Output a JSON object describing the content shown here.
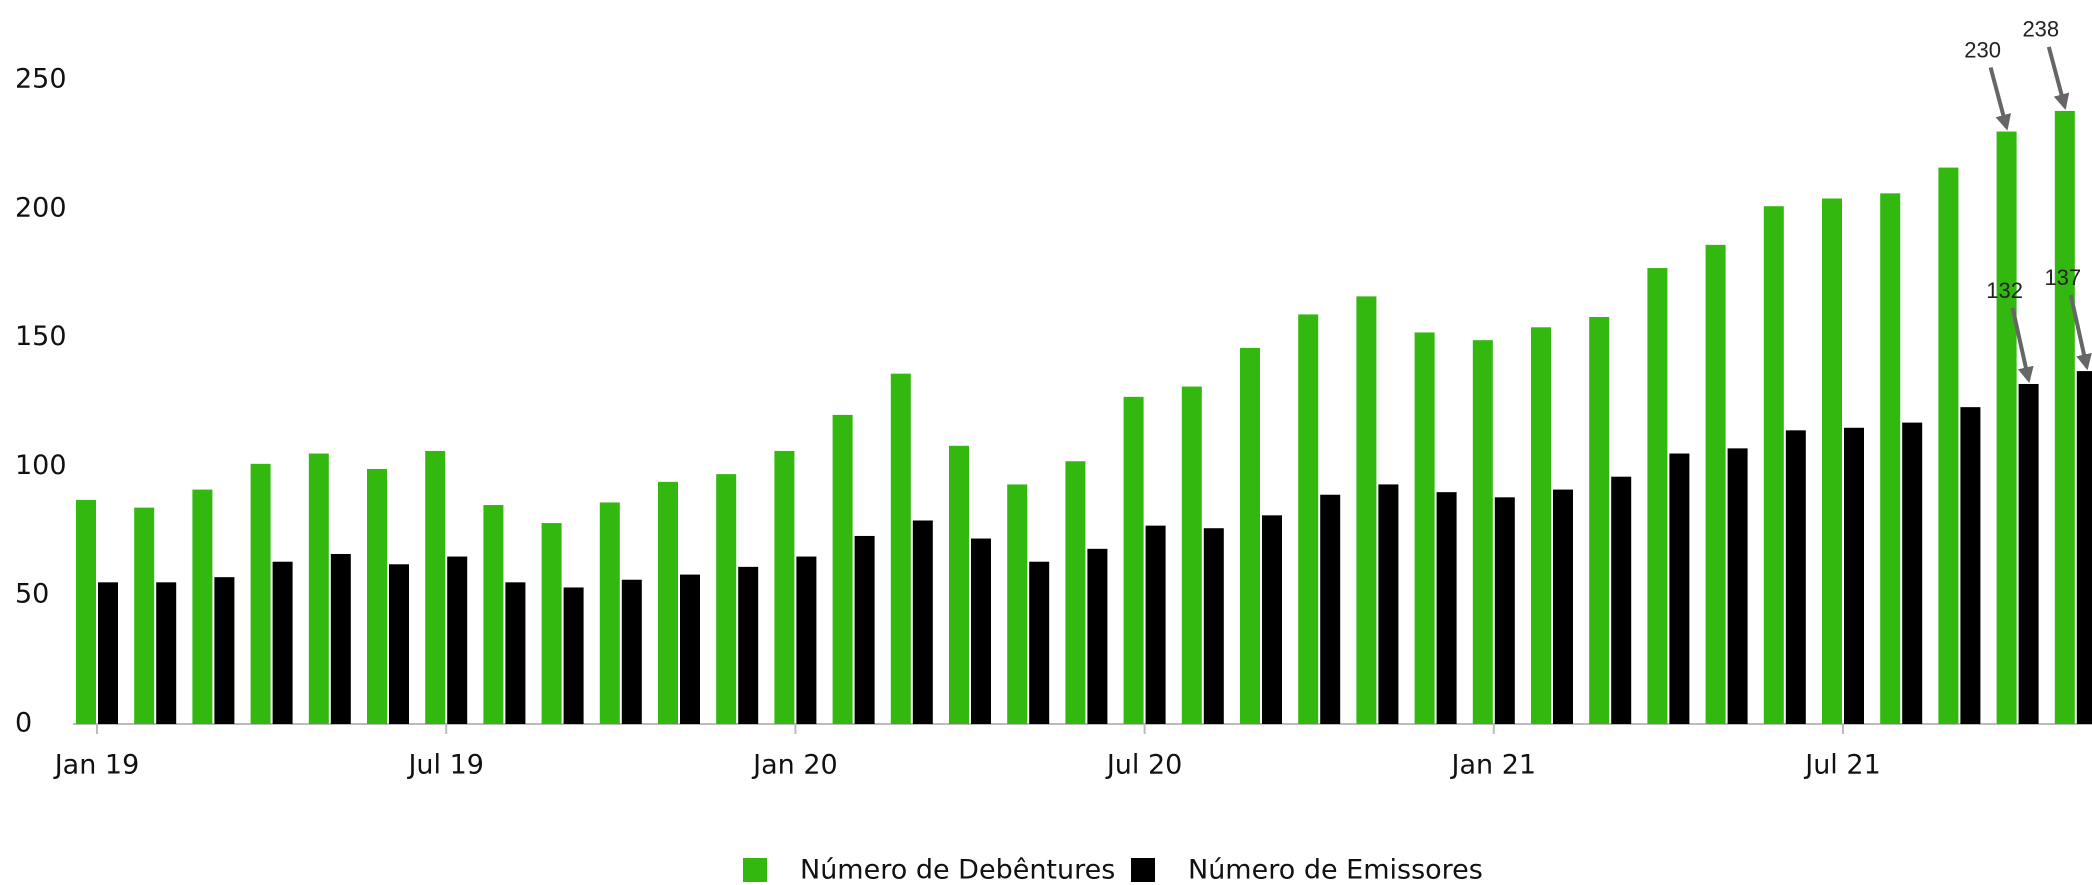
{
  "chart_data": {
    "type": "bar",
    "categories": [
      "Jan 19",
      null,
      null,
      null,
      null,
      null,
      "Jul 19",
      null,
      null,
      null,
      null,
      null,
      "Jan 20",
      null,
      null,
      null,
      null,
      null,
      "Jul 20",
      null,
      null,
      null,
      null,
      null,
      "Jan 21",
      null,
      null,
      null,
      null,
      null,
      "Jul 21",
      null,
      null,
      null,
      null
    ],
    "series": [
      {
        "name": "Número de Debêntures",
        "color": "#33b80f",
        "values": [
          87,
          84,
          91,
          101,
          105,
          99,
          106,
          85,
          78,
          86,
          94,
          97,
          106,
          120,
          136,
          108,
          93,
          102,
          127,
          131,
          146,
          159,
          166,
          152,
          149,
          154,
          158,
          177,
          186,
          201,
          204,
          206,
          216,
          230,
          238
        ]
      },
      {
        "name": "Número de Emissores",
        "color": "#000000",
        "values": [
          55,
          55,
          57,
          63,
          66,
          62,
          65,
          55,
          53,
          56,
          58,
          61,
          65,
          73,
          79,
          72,
          63,
          68,
          77,
          76,
          81,
          89,
          93,
          90,
          88,
          91,
          96,
          105,
          107,
          114,
          115,
          117,
          123,
          132,
          137
        ]
      }
    ],
    "ylim": [
      0,
      250
    ],
    "yticks": [
      0,
      50,
      100,
      150,
      200,
      250
    ],
    "grid": false,
    "legend": "bottom"
  }
}
